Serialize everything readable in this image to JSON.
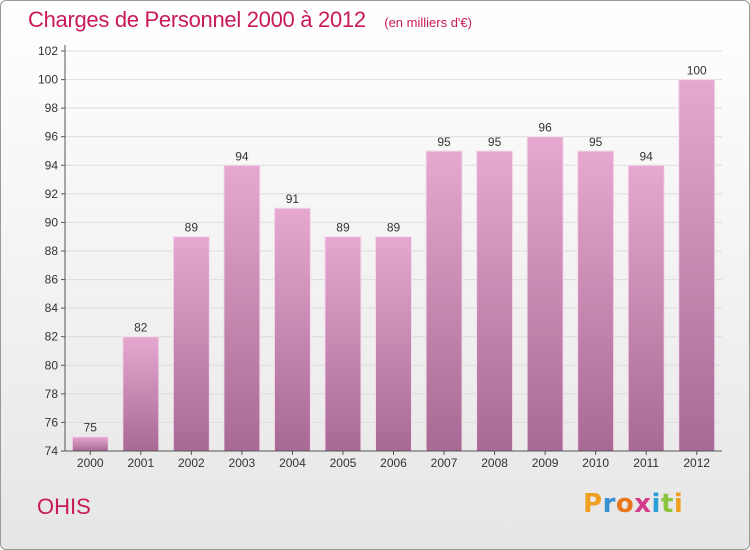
{
  "header": {
    "title": "Charges de Personnel 2000 à 2012",
    "subtitle": "(en milliers d'€)"
  },
  "footer": {
    "commune": "OHIS",
    "logo_letters": [
      "P",
      "r",
      "o",
      "x",
      "i",
      "t",
      "i"
    ],
    "logo_colors": [
      "#f0a020",
      "#3a8fd0",
      "#e8761a",
      "#d63a8a",
      "#2a9fd8",
      "#8cc63e",
      "#f0a020"
    ]
  },
  "colors": {
    "accent": "#c8195b",
    "bar_top": "#e6a8d0",
    "bar_bottom": "#a86a94"
  },
  "chart_data": {
    "type": "bar",
    "title": "Charges de Personnel 2000 à 2012",
    "subtitle": "(en milliers d'€)",
    "categories": [
      "2000",
      "2001",
      "2002",
      "2003",
      "2004",
      "2005",
      "2006",
      "2007",
      "2008",
      "2009",
      "2010",
      "2011",
      "2012"
    ],
    "values": [
      75,
      82,
      89,
      94,
      91,
      89,
      89,
      95,
      95,
      96,
      95,
      94,
      100
    ],
    "ylim": [
      74,
      102
    ],
    "yticks": [
      74,
      76,
      78,
      80,
      82,
      84,
      86,
      88,
      90,
      92,
      94,
      96,
      98,
      100,
      102
    ],
    "grid": true,
    "xlabel": "",
    "ylabel": ""
  }
}
